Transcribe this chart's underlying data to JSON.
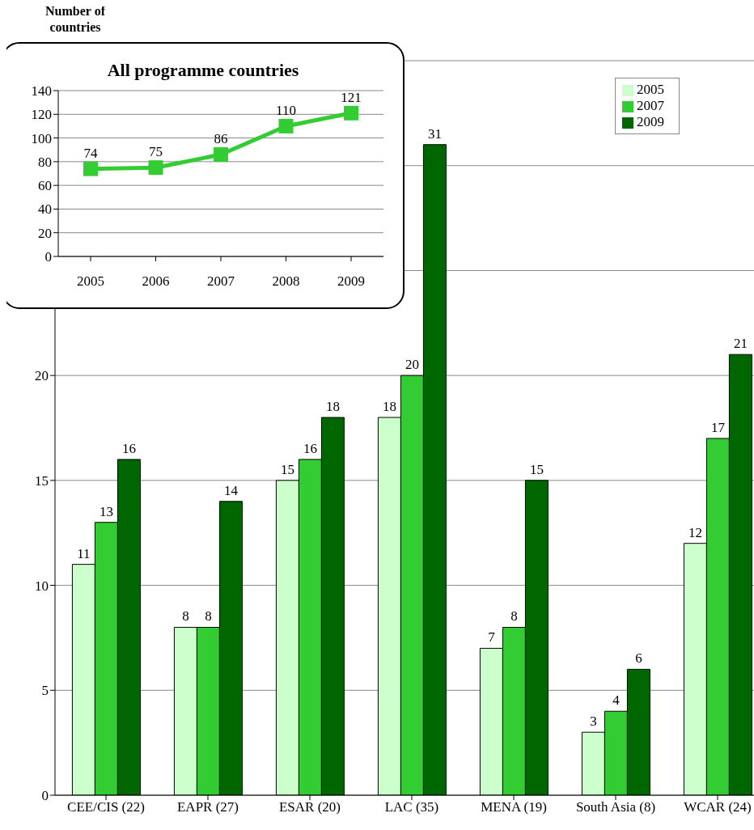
{
  "chart_data": [
    {
      "type": "bar",
      "ylabel": "Number of countries",
      "categories": [
        "CEE/CIS (22)",
        "EAPR (27)",
        "ESAR (20)",
        "LAC (35)",
        "MENA (19)",
        "South Asia (8)",
        "WCAR (24)"
      ],
      "series": [
        {
          "name": "2005",
          "color": "#ccffcc",
          "values": [
            11,
            8,
            15,
            18,
            7,
            3,
            12
          ]
        },
        {
          "name": "2007",
          "color": "#33cc33",
          "values": [
            13,
            8,
            16,
            20,
            8,
            4,
            17
          ]
        },
        {
          "name": "2009",
          "color": "#006600",
          "values": [
            16,
            14,
            18,
            31,
            15,
            6,
            21
          ]
        }
      ],
      "ylim": [
        0,
        35
      ],
      "yticks": [
        0,
        5,
        10,
        15,
        20,
        {
          "value": 25,
          "label": null
        },
        {
          "value": 30,
          "label": null
        },
        {
          "value": 35,
          "label": null
        }
      ],
      "grid": "y",
      "legend": "top right",
      "data_labels": true
    },
    {
      "type": "line",
      "title": "All programme countries",
      "categories": [
        "2005",
        "2006",
        "2007",
        "2008",
        "2009"
      ],
      "series": [
        {
          "color": "#33cc33",
          "values": [
            74,
            75,
            86,
            110,
            121
          ]
        }
      ],
      "ylim": [
        0,
        140
      ],
      "yticks": [
        0,
        20,
        40,
        60,
        80,
        100,
        120,
        140
      ],
      "grid": "y",
      "marker": "square",
      "data_labels": true
    }
  ]
}
